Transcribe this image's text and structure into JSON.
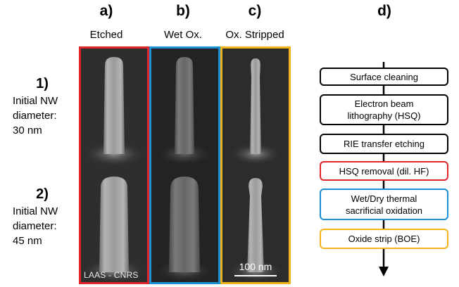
{
  "columns": [
    {
      "letter": "a)",
      "title": "Etched",
      "color": "#e0262b"
    },
    {
      "letter": "b)",
      "title": "Wet Ox.",
      "color": "#1b8fd6"
    },
    {
      "letter": "c)",
      "title": "Ox. Stripped",
      "color": "#f4b21b"
    }
  ],
  "rows": [
    {
      "number": "1)",
      "lines": [
        "Initial NW",
        "diameter:",
        "30 nm"
      ]
    },
    {
      "number": "2)",
      "lines": [
        "Initial NW",
        "diameter:",
        "45 nm"
      ]
    }
  ],
  "watermark": "LAAS - CNRS",
  "scale_bar": "100 nm",
  "process": {
    "letter": "d)",
    "steps": [
      {
        "label": "Surface cleaning",
        "color": "#000000"
      },
      {
        "label": "Electron beam\nlithography (HSQ)",
        "color": "#000000"
      },
      {
        "label": "RIE transfer etching",
        "color": "#000000"
      },
      {
        "label": "HSQ removal (dil. HF)",
        "color": "#e0262b"
      },
      {
        "label": "Wet/Dry thermal\nsacrificial oxidation",
        "color": "#1b8fd6"
      },
      {
        "label": "Oxide strip (BOE)",
        "color": "#f4b21b"
      }
    ]
  }
}
